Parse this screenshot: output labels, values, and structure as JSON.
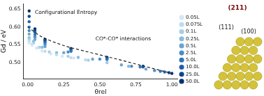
{
  "chart_data": {
    "type": "scatter",
    "x_label": "θrel",
    "y_label": "Gd / eV",
    "xlim": [
      -0.03,
      1.04
    ],
    "xticks": [
      {
        "value": 0,
        "label": "0.00"
      },
      {
        "value": 0.25,
        "label": "0.25"
      },
      {
        "value": 0.5,
        "label": "0.50"
      },
      {
        "value": 0.75,
        "label": "0.75"
      },
      {
        "value": 1,
        "label": "1.00"
      }
    ],
    "ylim": [
      0.455,
      0.665
    ],
    "yticks": [
      {
        "value": 0.5,
        "label": "0.50"
      },
      0.55,
      {
        "value": 0.6,
        "label": "0.60"
      },
      0.65
    ],
    "grid": false,
    "legend": "right",
    "marker": "circle",
    "annotations": [
      {
        "text": "Configurational Entropy",
        "x": 0.05,
        "y": 0.64
      },
      {
        "text": "CO*-CO* interactions",
        "x": 0.47,
        "y": 0.566
      }
    ],
    "series": [
      {
        "name": "0.05L",
        "color": "#d4e7f5",
        "x": [
          0.01,
          0.03,
          0.06,
          0.1,
          0.16,
          0.24,
          0.32
        ],
        "values": [
          0.555,
          0.549,
          0.541,
          0.533,
          0.525,
          0.518,
          0.513
        ]
      },
      {
        "name": "0.075L",
        "color": "#bfdcef",
        "x": [
          0.01,
          0.03,
          0.07,
          0.12,
          0.2,
          0.3,
          0.4
        ],
        "values": [
          0.56,
          0.552,
          0.542,
          0.532,
          0.522,
          0.514,
          0.508
        ]
      },
      {
        "name": "0.1L",
        "color": "#a6cde8",
        "x": [
          0.01,
          0.04,
          0.08,
          0.15,
          0.28,
          0.42,
          0.55
        ],
        "values": [
          0.565,
          0.555,
          0.543,
          0.53,
          0.518,
          0.507,
          0.5
        ]
      },
      {
        "name": "0.25L",
        "color": "#89bbdf",
        "x": [
          0.01,
          0.04,
          0.1,
          0.2,
          0.35,
          0.55,
          0.7
        ],
        "values": [
          0.57,
          0.56,
          0.543,
          0.528,
          0.515,
          0.5,
          0.49
        ]
      },
      {
        "name": "0.5L",
        "color": "#6aa5d4",
        "x": [
          0.01,
          0.05,
          0.12,
          0.25,
          0.45,
          0.65,
          0.82
        ],
        "values": [
          0.58,
          0.565,
          0.545,
          0.528,
          0.51,
          0.494,
          0.482
        ]
      },
      {
        "name": "2.5L",
        "color": "#4a8cc6",
        "x": [
          0.01,
          0.05,
          0.12,
          0.28,
          0.5,
          0.72,
          0.88
        ],
        "values": [
          0.59,
          0.572,
          0.55,
          0.53,
          0.51,
          0.49,
          0.478
        ]
      },
      {
        "name": "5.0L",
        "color": "#2f75b8",
        "x": [
          0.01,
          0.05,
          0.12,
          0.3,
          0.55,
          0.78,
          0.92
        ],
        "values": [
          0.6,
          0.578,
          0.555,
          0.532,
          0.509,
          0.488,
          0.476
        ]
      },
      {
        "name": "10.0L",
        "color": "#1f5fa8",
        "x": [
          0.01,
          0.05,
          0.12,
          0.3,
          0.55,
          0.8,
          0.95
        ],
        "values": [
          0.615,
          0.585,
          0.558,
          0.535,
          0.511,
          0.488,
          0.474
        ]
      },
      {
        "name": "25.0L",
        "color": "#08468f",
        "x": [
          0.01,
          0.05,
          0.12,
          0.3,
          0.55,
          0.8,
          0.98
        ],
        "values": [
          0.63,
          0.59,
          0.562,
          0.538,
          0.513,
          0.489,
          0.472
        ]
      },
      {
        "name": "50.0L",
        "color": "#08306b",
        "x": [
          0.01,
          0.05,
          0.12,
          0.3,
          0.55,
          0.8,
          1.0
        ],
        "values": [
          0.645,
          0.595,
          0.565,
          0.54,
          0.515,
          0.49,
          0.47
        ]
      },
      {
        "type": "line",
        "line_style": "dashed",
        "color": "#222222",
        "x": [
          0.0,
          0.1,
          0.25,
          0.4,
          0.6,
          0.8,
          1.0
        ],
        "values": [
          0.6,
          0.572,
          0.548,
          0.532,
          0.512,
          0.491,
          0.47
        ]
      }
    ]
  },
  "diagram": {
    "title": "(211)",
    "labels": [
      "(111)",
      "(100)"
    ]
  }
}
